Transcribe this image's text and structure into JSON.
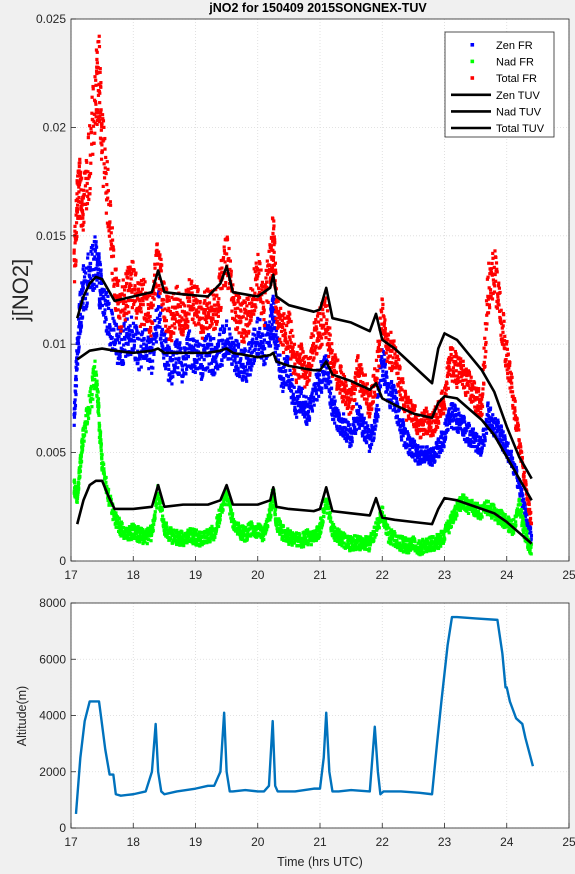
{
  "chart_data": [
    {
      "type": "scatter",
      "title": "jNO2 for 150409 2015SONGNEX-TUV",
      "xlabel": "",
      "ylabel": "j[NO2]",
      "xlim": [
        17,
        25
      ],
      "ylim": [
        0,
        0.025
      ],
      "xticks": [
        "17",
        "18",
        "19",
        "20",
        "21",
        "22",
        "23",
        "24",
        "25"
      ],
      "yticks": [
        "0",
        "0.005",
        "0.01",
        "0.015",
        "0.02",
        "0.025"
      ],
      "grid": true,
      "legend_position": "top-right",
      "series": [
        {
          "name": "Zen FR",
          "kind": "markers",
          "color": "#0000ff",
          "x": [
            17.05,
            17.1,
            17.15,
            17.2,
            17.3,
            17.4,
            17.45,
            17.5,
            17.6,
            17.7,
            17.8,
            17.9,
            18.0,
            18.1,
            18.2,
            18.3,
            18.4,
            18.5,
            18.6,
            18.7,
            18.8,
            18.9,
            19.0,
            19.1,
            19.2,
            19.3,
            19.4,
            19.5,
            19.6,
            19.7,
            19.8,
            19.9,
            20.0,
            20.1,
            20.2,
            20.25,
            20.3,
            20.4,
            20.5,
            20.6,
            20.7,
            20.8,
            20.9,
            21.0,
            21.1,
            21.2,
            21.3,
            21.4,
            21.5,
            21.6,
            21.7,
            21.8,
            21.9,
            22.0,
            22.1,
            22.2,
            22.3,
            22.4,
            22.5,
            22.6,
            22.7,
            22.8,
            22.9,
            23.0,
            23.1,
            23.2,
            23.3,
            23.4,
            23.5,
            23.6,
            23.7,
            23.8,
            23.9,
            24.0,
            24.1,
            24.2,
            24.3,
            24.4
          ],
          "y": [
            0.0065,
            0.0095,
            0.0115,
            0.0125,
            0.0132,
            0.0138,
            0.013,
            0.0122,
            0.0112,
            0.0102,
            0.0098,
            0.0103,
            0.0105,
            0.0095,
            0.01,
            0.0092,
            0.0118,
            0.0098,
            0.0088,
            0.0095,
            0.009,
            0.0098,
            0.0095,
            0.0092,
            0.0096,
            0.0094,
            0.0098,
            0.0102,
            0.0096,
            0.0092,
            0.009,
            0.0094,
            0.0105,
            0.0098,
            0.0108,
            0.0115,
            0.0098,
            0.0085,
            0.0088,
            0.0072,
            0.0075,
            0.0068,
            0.0078,
            0.0084,
            0.0088,
            0.0072,
            0.0065,
            0.0062,
            0.0056,
            0.0068,
            0.0062,
            0.0055,
            0.0064,
            0.0092,
            0.0078,
            0.0075,
            0.0062,
            0.0055,
            0.0052,
            0.0048,
            0.005,
            0.0048,
            0.0052,
            0.0058,
            0.0068,
            0.0065,
            0.0062,
            0.0058,
            0.0055,
            0.0052,
            0.0068,
            0.0062,
            0.0058,
            0.0052,
            0.0045,
            0.0035,
            0.0022,
            0.0012
          ]
        },
        {
          "name": "Nad FR",
          "kind": "markers",
          "color": "#00ff00",
          "x": [
            17.05,
            17.1,
            17.15,
            17.2,
            17.3,
            17.4,
            17.45,
            17.5,
            17.6,
            17.7,
            17.8,
            17.9,
            18.0,
            18.1,
            18.2,
            18.3,
            18.4,
            18.5,
            18.6,
            18.7,
            18.8,
            18.9,
            19.0,
            19.1,
            19.2,
            19.3,
            19.4,
            19.5,
            19.6,
            19.7,
            19.8,
            19.9,
            20.0,
            20.1,
            20.2,
            20.25,
            20.3,
            20.4,
            20.5,
            20.6,
            20.7,
            20.8,
            20.9,
            21.0,
            21.1,
            21.2,
            21.3,
            21.4,
            21.5,
            21.6,
            21.7,
            21.8,
            21.9,
            22.0,
            22.1,
            22.2,
            22.3,
            22.4,
            22.5,
            22.6,
            22.7,
            22.8,
            22.9,
            23.0,
            23.1,
            23.2,
            23.3,
            23.4,
            23.5,
            23.6,
            23.7,
            23.8,
            23.9,
            24.0,
            24.1,
            24.2,
            24.3,
            24.4
          ],
          "y": [
            0.0035,
            0.0028,
            0.0045,
            0.0058,
            0.0072,
            0.0088,
            0.0065,
            0.0045,
            0.003,
            0.002,
            0.0015,
            0.0012,
            0.0014,
            0.0012,
            0.0011,
            0.0013,
            0.0032,
            0.0015,
            0.0012,
            0.0011,
            0.001,
            0.0012,
            0.0011,
            0.001,
            0.0012,
            0.0013,
            0.0022,
            0.0032,
            0.0018,
            0.0014,
            0.0012,
            0.0015,
            0.0014,
            0.0012,
            0.0022,
            0.0032,
            0.0018,
            0.0013,
            0.0011,
            0.001,
            0.0009,
            0.0011,
            0.001,
            0.0015,
            0.0028,
            0.0014,
            0.0011,
            0.0009,
            0.0008,
            0.0009,
            0.0008,
            0.0008,
            0.0015,
            0.0022,
            0.0012,
            0.001,
            0.0008,
            0.0007,
            0.0008,
            0.0006,
            0.0007,
            0.0008,
            0.0009,
            0.0012,
            0.0018,
            0.0024,
            0.0028,
            0.0025,
            0.0024,
            0.0022,
            0.0025,
            0.0022,
            0.002,
            0.0018,
            0.0015,
            0.0025,
            0.0012,
            0.0005
          ]
        },
        {
          "name": "Total FR",
          "kind": "markers",
          "color": "#ff0000",
          "x": [
            17.05,
            17.1,
            17.15,
            17.2,
            17.3,
            17.4,
            17.45,
            17.5,
            17.6,
            17.7,
            17.8,
            17.9,
            18.0,
            18.1,
            18.2,
            18.3,
            18.4,
            18.5,
            18.6,
            18.7,
            18.8,
            18.9,
            19.0,
            19.1,
            19.2,
            19.3,
            19.4,
            19.5,
            19.6,
            19.7,
            19.8,
            19.9,
            20.0,
            20.1,
            20.2,
            20.25,
            20.3,
            20.4,
            20.5,
            20.6,
            20.7,
            20.8,
            20.9,
            21.0,
            21.1,
            21.2,
            21.3,
            21.4,
            21.5,
            21.6,
            21.7,
            21.8,
            21.9,
            22.0,
            22.1,
            22.2,
            22.3,
            22.4,
            22.5,
            22.6,
            22.7,
            22.8,
            22.9,
            23.0,
            23.1,
            23.2,
            23.3,
            23.4,
            23.5,
            23.6,
            23.7,
            23.8,
            23.9,
            24.0,
            24.1,
            24.2,
            24.3,
            24.4
          ],
          "y": [
            0.0135,
            0.0162,
            0.0172,
            0.0165,
            0.0185,
            0.0215,
            0.0225,
            0.0195,
            0.0165,
            0.013,
            0.0115,
            0.0125,
            0.0128,
            0.0118,
            0.012,
            0.0112,
            0.0142,
            0.0118,
            0.011,
            0.0118,
            0.0112,
            0.012,
            0.0118,
            0.0112,
            0.0116,
            0.0115,
            0.0125,
            0.0142,
            0.0118,
            0.0112,
            0.011,
            0.0118,
            0.0132,
            0.0118,
            0.0135,
            0.015,
            0.0118,
            0.0105,
            0.0108,
            0.009,
            0.0092,
            0.0085,
            0.0102,
            0.0108,
            0.0112,
            0.009,
            0.0085,
            0.0078,
            0.0072,
            0.0088,
            0.0082,
            0.0072,
            0.0085,
            0.0112,
            0.0098,
            0.0095,
            0.008,
            0.007,
            0.0068,
            0.0062,
            0.0065,
            0.0062,
            0.0068,
            0.0075,
            0.0092,
            0.0088,
            0.0085,
            0.0082,
            0.0075,
            0.0072,
            0.0125,
            0.0135,
            0.0115,
            0.0095,
            0.0075,
            0.0055,
            0.0035,
            0.0018
          ]
        },
        {
          "name": "Zen TUV",
          "kind": "line",
          "color": "#000000",
          "x": [
            17.1,
            17.2,
            17.3,
            17.4,
            17.5,
            17.6,
            17.7,
            18.0,
            18.3,
            18.4,
            18.5,
            18.8,
            19.2,
            19.4,
            19.5,
            19.6,
            20.0,
            20.2,
            20.25,
            20.3,
            20.5,
            20.9,
            21.0,
            21.1,
            21.2,
            21.5,
            21.8,
            21.9,
            22.0,
            22.2,
            22.5,
            22.8,
            22.9,
            23.0,
            23.2,
            23.4,
            23.6,
            23.8,
            24.0,
            24.2,
            24.4
          ],
          "y": [
            0.0112,
            0.0122,
            0.0128,
            0.0131,
            0.013,
            0.0125,
            0.012,
            0.0122,
            0.0124,
            0.0134,
            0.0124,
            0.0123,
            0.0122,
            0.0128,
            0.0136,
            0.0124,
            0.0122,
            0.0126,
            0.0132,
            0.0122,
            0.0118,
            0.0115,
            0.0116,
            0.0126,
            0.0112,
            0.011,
            0.0106,
            0.0114,
            0.0102,
            0.0098,
            0.009,
            0.0082,
            0.0098,
            0.0105,
            0.0102,
            0.0095,
            0.0088,
            0.0078,
            0.0062,
            0.0048,
            0.0038
          ]
        },
        {
          "name": "Nad TUV",
          "kind": "line",
          "color": "#000000",
          "x": [
            17.1,
            17.3,
            17.5,
            17.7,
            18.0,
            18.3,
            18.4,
            18.5,
            18.8,
            19.2,
            19.4,
            19.5,
            19.6,
            20.0,
            20.2,
            20.25,
            20.3,
            20.5,
            20.9,
            21.0,
            21.1,
            21.2,
            21.5,
            21.8,
            21.9,
            22.0,
            22.2,
            22.5,
            22.8,
            22.9,
            23.0,
            23.2,
            23.4,
            23.6,
            23.8,
            24.0,
            24.2,
            24.4
          ],
          "y": [
            0.0093,
            0.0097,
            0.0098,
            0.0097,
            0.0096,
            0.0097,
            0.0098,
            0.0096,
            0.0096,
            0.0096,
            0.0097,
            0.0098,
            0.0096,
            0.0094,
            0.0095,
            0.0096,
            0.0092,
            0.009,
            0.0088,
            0.0088,
            0.0092,
            0.0086,
            0.0083,
            0.0079,
            0.0082,
            0.0075,
            0.0072,
            0.0068,
            0.0066,
            0.0073,
            0.0076,
            0.0075,
            0.007,
            0.0065,
            0.0058,
            0.0048,
            0.0038,
            0.0028
          ]
        },
        {
          "name": "Total TUV",
          "kind": "line",
          "color": "#000000",
          "x": [
            17.1,
            17.2,
            17.3,
            17.4,
            17.5,
            17.6,
            17.7,
            18.0,
            18.3,
            18.4,
            18.5,
            18.8,
            19.2,
            19.4,
            19.5,
            19.6,
            20.0,
            20.2,
            20.25,
            20.3,
            20.5,
            20.9,
            21.0,
            21.1,
            21.2,
            21.5,
            21.8,
            21.9,
            22.0,
            22.2,
            22.5,
            22.8,
            22.9,
            23.0,
            23.2,
            23.4,
            23.6,
            23.8,
            24.0,
            24.2,
            24.4
          ],
          "y": [
            0.0017,
            0.0028,
            0.0035,
            0.0037,
            0.0037,
            0.003,
            0.0024,
            0.0024,
            0.0025,
            0.0035,
            0.0025,
            0.0026,
            0.0026,
            0.0028,
            0.0035,
            0.0026,
            0.0026,
            0.0028,
            0.0034,
            0.0025,
            0.0024,
            0.0023,
            0.0024,
            0.0034,
            0.0023,
            0.0022,
            0.0021,
            0.0029,
            0.002,
            0.0019,
            0.0018,
            0.0017,
            0.0024,
            0.0029,
            0.0028,
            0.0026,
            0.0024,
            0.0022,
            0.0018,
            0.0013,
            0.0008
          ]
        }
      ]
    },
    {
      "type": "line",
      "title": "",
      "xlabel": "Time (hrs UTC)",
      "ylabel": "Altitude(m)",
      "xlim": [
        17,
        25
      ],
      "ylim": [
        0,
        8000
      ],
      "xticks": [
        "17",
        "18",
        "19",
        "20",
        "21",
        "22",
        "23",
        "24",
        "25"
      ],
      "yticks": [
        "0",
        "2000",
        "4000",
        "6000",
        "8000"
      ],
      "grid": true,
      "series": [
        {
          "color": "#0072bd",
          "x": [
            17.08,
            17.15,
            17.22,
            17.3,
            17.35,
            17.45,
            17.48,
            17.55,
            17.62,
            17.68,
            17.72,
            17.8,
            18.0,
            18.2,
            18.3,
            18.36,
            18.4,
            18.45,
            18.5,
            18.7,
            19.0,
            19.2,
            19.3,
            19.4,
            19.46,
            19.5,
            19.55,
            19.6,
            19.8,
            20.0,
            20.1,
            20.18,
            20.24,
            20.28,
            20.32,
            20.4,
            20.6,
            20.9,
            21.0,
            21.06,
            21.1,
            21.15,
            21.2,
            21.3,
            21.5,
            21.8,
            21.88,
            21.93,
            21.97,
            22.02,
            22.1,
            22.3,
            22.6,
            22.8,
            22.88,
            22.95,
            23.05,
            23.12,
            23.2,
            23.5,
            23.85,
            23.93,
            23.98,
            24.0,
            24.05,
            24.1,
            24.15,
            24.25,
            24.3,
            24.42
          ],
          "y": [
            500,
            2500,
            3800,
            4500,
            4500,
            4500,
            4000,
            2800,
            1900,
            1900,
            1200,
            1150,
            1200,
            1300,
            2000,
            3700,
            2000,
            1300,
            1200,
            1300,
            1400,
            1500,
            1500,
            2000,
            4100,
            2000,
            1300,
            1300,
            1350,
            1300,
            1300,
            1500,
            3800,
            1500,
            1300,
            1300,
            1300,
            1400,
            1400,
            2500,
            4100,
            2000,
            1300,
            1300,
            1350,
            1300,
            3600,
            2000,
            1200,
            1300,
            1300,
            1300,
            1250,
            1200,
            3000,
            4500,
            6500,
            7500,
            7500,
            7450,
            7400,
            6200,
            5000,
            5000,
            4500,
            4200,
            3900,
            3700,
            3200,
            2200
          ]
        }
      ]
    }
  ]
}
